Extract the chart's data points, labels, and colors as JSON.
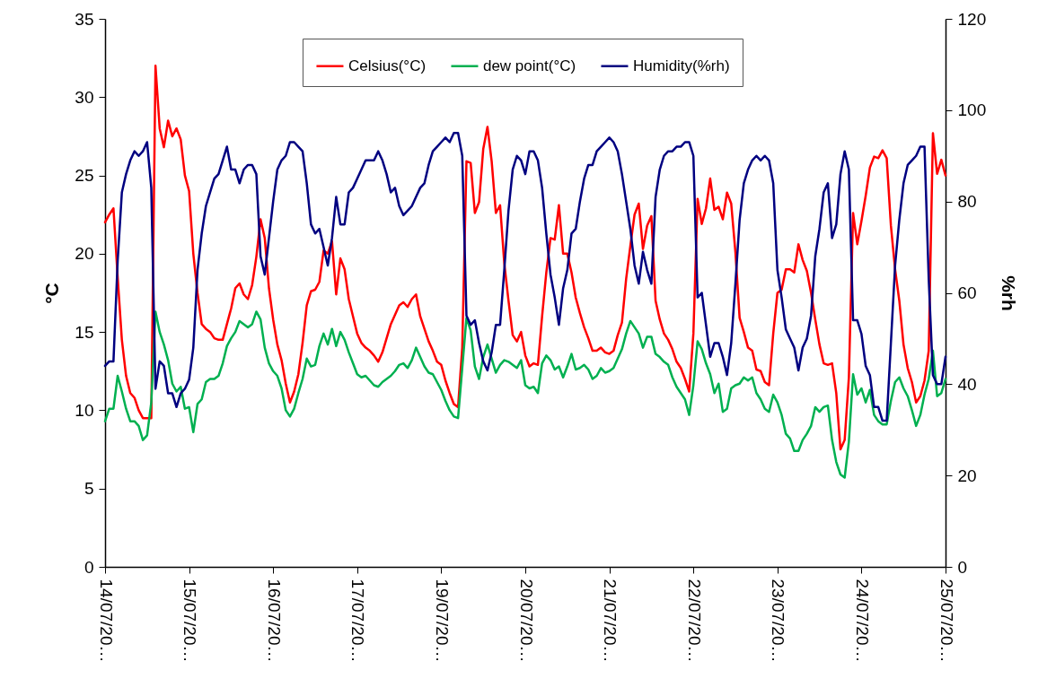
{
  "chart_data": {
    "type": "line",
    "ylabel": "°C",
    "y2label": "%rh",
    "categories": [
      "14/07/20…",
      null,
      null,
      null,
      null,
      null,
      null,
      null,
      null,
      null,
      null,
      null,
      null,
      null,
      null,
      null,
      null,
      null,
      null,
      null,
      "15/07/20…",
      null,
      null,
      null,
      null,
      null,
      null,
      null,
      null,
      null,
      null,
      null,
      null,
      null,
      null,
      null,
      null,
      null,
      null,
      null,
      "16/07/20…",
      null,
      null,
      null,
      null,
      null,
      null,
      null,
      null,
      null,
      null,
      null,
      null,
      null,
      null,
      null,
      null,
      null,
      null,
      null,
      "17/07/20…",
      null,
      null,
      null,
      null,
      null,
      null,
      null,
      null,
      null,
      null,
      null,
      null,
      null,
      null,
      null,
      null,
      null,
      null,
      null,
      "19/07/20…",
      null,
      null,
      null,
      null,
      null,
      null,
      null,
      null,
      null,
      null,
      null,
      null,
      null,
      null,
      null,
      null,
      null,
      null,
      null,
      "20/07/20…",
      null,
      null,
      null,
      null,
      null,
      null,
      null,
      null,
      null,
      null,
      null,
      null,
      null,
      null,
      null,
      null,
      null,
      null,
      null,
      "21/07/20…",
      null,
      null,
      null,
      null,
      null,
      null,
      null,
      null,
      null,
      null,
      null,
      null,
      null,
      null,
      null,
      null,
      null,
      null,
      null,
      "22/07/20…",
      null,
      null,
      null,
      null,
      null,
      null,
      null,
      null,
      null,
      null,
      null,
      null,
      null,
      null,
      null,
      null,
      null,
      null,
      null,
      "23/07/20…",
      null,
      null,
      null,
      null,
      null,
      null,
      null,
      null,
      null,
      null,
      null,
      null,
      null,
      null,
      null,
      null,
      null,
      null,
      null,
      "24/07/20…",
      null,
      null,
      null,
      null,
      null,
      null,
      null,
      null,
      null,
      null,
      null,
      null,
      null,
      null,
      null,
      null,
      null,
      null,
      null,
      "25/07/20…"
    ],
    "ylim": [
      0,
      35
    ],
    "yticks": [
      0,
      5,
      10,
      15,
      20,
      25,
      30,
      35
    ],
    "y2lim": [
      0,
      120
    ],
    "y2ticks": [
      0,
      20,
      40,
      60,
      80,
      100,
      120
    ],
    "legend": "top",
    "series": [
      {
        "name": "Celsius(°C)",
        "color": "#ff0000",
        "values": [
          22,
          22.5,
          22.9,
          18.5,
          14.5,
          12.2,
          11.1,
          10.8,
          10,
          9.5,
          9.5,
          9.5,
          32,
          28,
          26.8,
          28.5,
          27.5,
          28,
          27.3,
          25,
          24,
          20,
          17.5,
          15.5,
          15.2,
          15,
          14.6,
          14.5,
          14.5,
          15.5,
          16.5,
          17.8,
          18.1,
          17.4,
          17.1,
          18,
          19.8,
          22.2,
          21,
          17.8,
          15.8,
          14.2,
          13.2,
          11.7,
          10.5,
          11.2,
          12.3,
          14.3,
          16.7,
          17.6,
          17.7,
          18.2,
          20.2,
          20,
          20.8,
          17.4,
          19.7,
          19,
          17.1,
          16,
          14.9,
          14.3,
          14,
          13.8,
          13.5,
          13.1,
          13.7,
          14.6,
          15.5,
          16.1,
          16.7,
          16.9,
          16.6,
          17.1,
          17.4,
          16,
          15.2,
          14.4,
          13.8,
          13.1,
          12.9,
          11.9,
          11.1,
          10.4,
          10.2,
          14,
          25.9,
          25.8,
          22.6,
          23.3,
          26.7,
          28.1,
          25.9,
          22.6,
          23.1,
          19.4,
          17,
          14.8,
          14.4,
          15,
          13.5,
          12.8,
          13,
          12.9,
          16,
          18.8,
          21,
          20.9,
          23.1,
          20,
          20,
          18.8,
          17.2,
          16.2,
          15.3,
          14.6,
          13.8,
          13.8,
          14,
          13.7,
          13.6,
          13.8,
          14.8,
          15.6,
          18.4,
          20.5,
          22.5,
          23.2,
          20.3,
          21.8,
          22.4,
          17,
          15.8,
          14.9,
          14.5,
          13.9,
          13.1,
          12.7,
          12,
          11.2,
          14.9,
          23.5,
          21.9,
          22.9,
          24.8,
          22.8,
          23,
          22.2,
          23.9,
          23.2,
          20.1,
          15.9,
          15,
          14,
          13.8,
          12.6,
          12.5,
          11.8,
          11.6,
          14.9,
          17.5,
          17.7,
          19,
          19,
          18.8,
          20.6,
          19.6,
          18.9,
          17.5,
          15.8,
          14.2,
          13,
          12.9,
          13,
          11.1,
          7.5,
          8.1,
          12.1,
          22.6,
          20.6,
          22.1,
          23.7,
          25.5,
          26.2,
          26.1,
          26.6,
          26.1,
          21.8,
          19,
          17,
          14.2,
          12.7,
          11.8,
          10.5,
          10.9,
          11.9,
          13.8,
          27.7,
          25.1,
          26,
          25
        ]
      },
      {
        "name": "dew point(°C)",
        "color": "#00b050",
        "values": [
          9.3,
          10.1,
          10.1,
          12.2,
          11.2,
          10.1,
          9.3,
          9.3,
          9,
          8.1,
          8.4,
          10.5,
          16.3,
          15,
          14.2,
          13.2,
          11.7,
          11.2,
          11.5,
          10.1,
          10.2,
          8.6,
          10.4,
          10.7,
          11.8,
          12,
          12,
          12.2,
          13,
          14.1,
          14.6,
          15,
          15.7,
          15.5,
          15.3,
          15.5,
          16.3,
          15.8,
          14,
          13,
          12.5,
          12.2,
          11.4,
          10,
          9.6,
          10.1,
          11.1,
          12,
          13.3,
          12.8,
          12.9,
          14.1,
          14.9,
          14.2,
          15.2,
          14.1,
          15,
          14.5,
          13.7,
          13,
          12.3,
          12.1,
          12.2,
          11.9,
          11.6,
          11.5,
          11.8,
          12,
          12.2,
          12.5,
          12.9,
          13,
          12.7,
          13.2,
          14,
          13.4,
          12.8,
          12.4,
          12.3,
          11.8,
          11.3,
          10.6,
          10,
          9.6,
          9.5,
          12.7,
          15.9,
          15.1,
          12.8,
          12,
          13.4,
          14.2,
          13.3,
          12.4,
          12.9,
          13.2,
          13.1,
          12.9,
          12.7,
          13.2,
          11.6,
          11.4,
          11.5,
          11.1,
          13,
          13.5,
          13.2,
          12.6,
          12.8,
          12.1,
          12.8,
          13.6,
          12.6,
          12.7,
          12.9,
          12.6,
          12,
          12.2,
          12.7,
          12.4,
          12.5,
          12.7,
          13.3,
          13.9,
          14.9,
          15.7,
          15.3,
          14.9,
          14,
          14.7,
          14.7,
          13.6,
          13.4,
          13.1,
          12.9,
          12.1,
          11.5,
          11.1,
          10.7,
          9.7,
          11.6,
          14.4,
          13.9,
          13,
          12.3,
          11.1,
          11.7,
          9.9,
          10.1,
          11.4,
          11.6,
          11.7,
          12.1,
          11.9,
          12.1,
          11.1,
          10.7,
          10.1,
          9.9,
          11,
          10.5,
          9.7,
          8.5,
          8.2,
          7.4,
          7.4,
          8.1,
          8.5,
          9,
          10.2,
          9.9,
          10.2,
          10.3,
          8.1,
          6.7,
          5.9,
          5.7,
          8,
          12.3,
          11,
          11.4,
          10.5,
          11.3,
          9.7,
          9.3,
          9.1,
          9.1,
          10.6,
          11.8,
          12.1,
          11.4,
          10.9,
          10,
          9,
          9.7,
          11,
          12,
          13.8,
          10.9,
          11.1,
          12
        ]
      },
      {
        "name": "Humidity(%rh)",
        "color": "#000080",
        "axis": "y2",
        "values": [
          44,
          45,
          45,
          67,
          82,
          86,
          89,
          91,
          90,
          91,
          93,
          83,
          39,
          45,
          44,
          38,
          38,
          35,
          38,
          39,
          41,
          48,
          65,
          73,
          79,
          82,
          85,
          86,
          89,
          92,
          87,
          87,
          84,
          87,
          88,
          88,
          86,
          68,
          64,
          72,
          80,
          87,
          89,
          90,
          93,
          93,
          92,
          91,
          84,
          75,
          73,
          74,
          70,
          66,
          72,
          81,
          75,
          75,
          82,
          83,
          85,
          87,
          89,
          89,
          89,
          91,
          89,
          86,
          82,
          83,
          79,
          77,
          78,
          79,
          81,
          83,
          84,
          88,
          91,
          92,
          93,
          94,
          93,
          95,
          95,
          90,
          55,
          53,
          54,
          49,
          45,
          43,
          47,
          53,
          53,
          65,
          78,
          87,
          90,
          89,
          86,
          91,
          91,
          89,
          83,
          73,
          64,
          59,
          53,
          61,
          65,
          73,
          74,
          80,
          85,
          88,
          88,
          91,
          92,
          93,
          94,
          93,
          91,
          86,
          80,
          74,
          66,
          62,
          69,
          65,
          62,
          81,
          87,
          90,
          91,
          91,
          92,
          92,
          93,
          93,
          90,
          59,
          60,
          53,
          46,
          49,
          49,
          46,
          42,
          49,
          62,
          76,
          84,
          87,
          89,
          90,
          89,
          90,
          89,
          84,
          65,
          59,
          52,
          50,
          48,
          43,
          48,
          50,
          55,
          68,
          74,
          82,
          84,
          72,
          75,
          86,
          91,
          87,
          54,
          54,
          51,
          44,
          42,
          35,
          35,
          32,
          32,
          49,
          66,
          76,
          84,
          88,
          89,
          90,
          92,
          92,
          63,
          42,
          40,
          40,
          46
        ]
      }
    ]
  }
}
